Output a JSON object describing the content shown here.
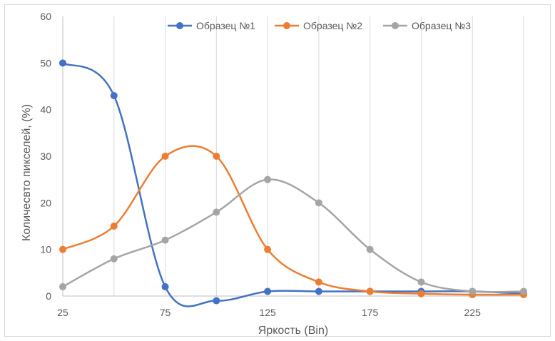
{
  "chart_data": {
    "type": "line",
    "smooth": true,
    "title": "",
    "xlabel": "Яркость (Bin)",
    "ylabel": "Количесвто пикселей, (%)",
    "x": [
      25,
      50,
      75,
      100,
      125,
      150,
      175,
      200,
      225,
      250
    ],
    "xlim": [
      25,
      250
    ],
    "ylim": [
      0,
      60
    ],
    "y_ticks": [
      0,
      10,
      20,
      30,
      40,
      50,
      60
    ],
    "x_ticks": [
      25,
      75,
      125,
      175,
      225
    ],
    "grid": "vertical",
    "legend_position": "top",
    "series": [
      {
        "name": "Образец №1",
        "color": "#4472C4",
        "values": [
          50,
          43,
          2,
          -1,
          1,
          1,
          1,
          1,
          1,
          0.5
        ]
      },
      {
        "name": "Образец №2",
        "color": "#ED7D31",
        "values": [
          10,
          15,
          30,
          30,
          10,
          3,
          1,
          0.5,
          0.3,
          0.3
        ]
      },
      {
        "name": "Образец №3",
        "color": "#A5A5A5",
        "values": [
          2,
          8,
          12,
          18,
          25,
          20,
          10,
          3,
          1,
          1
        ]
      }
    ]
  }
}
